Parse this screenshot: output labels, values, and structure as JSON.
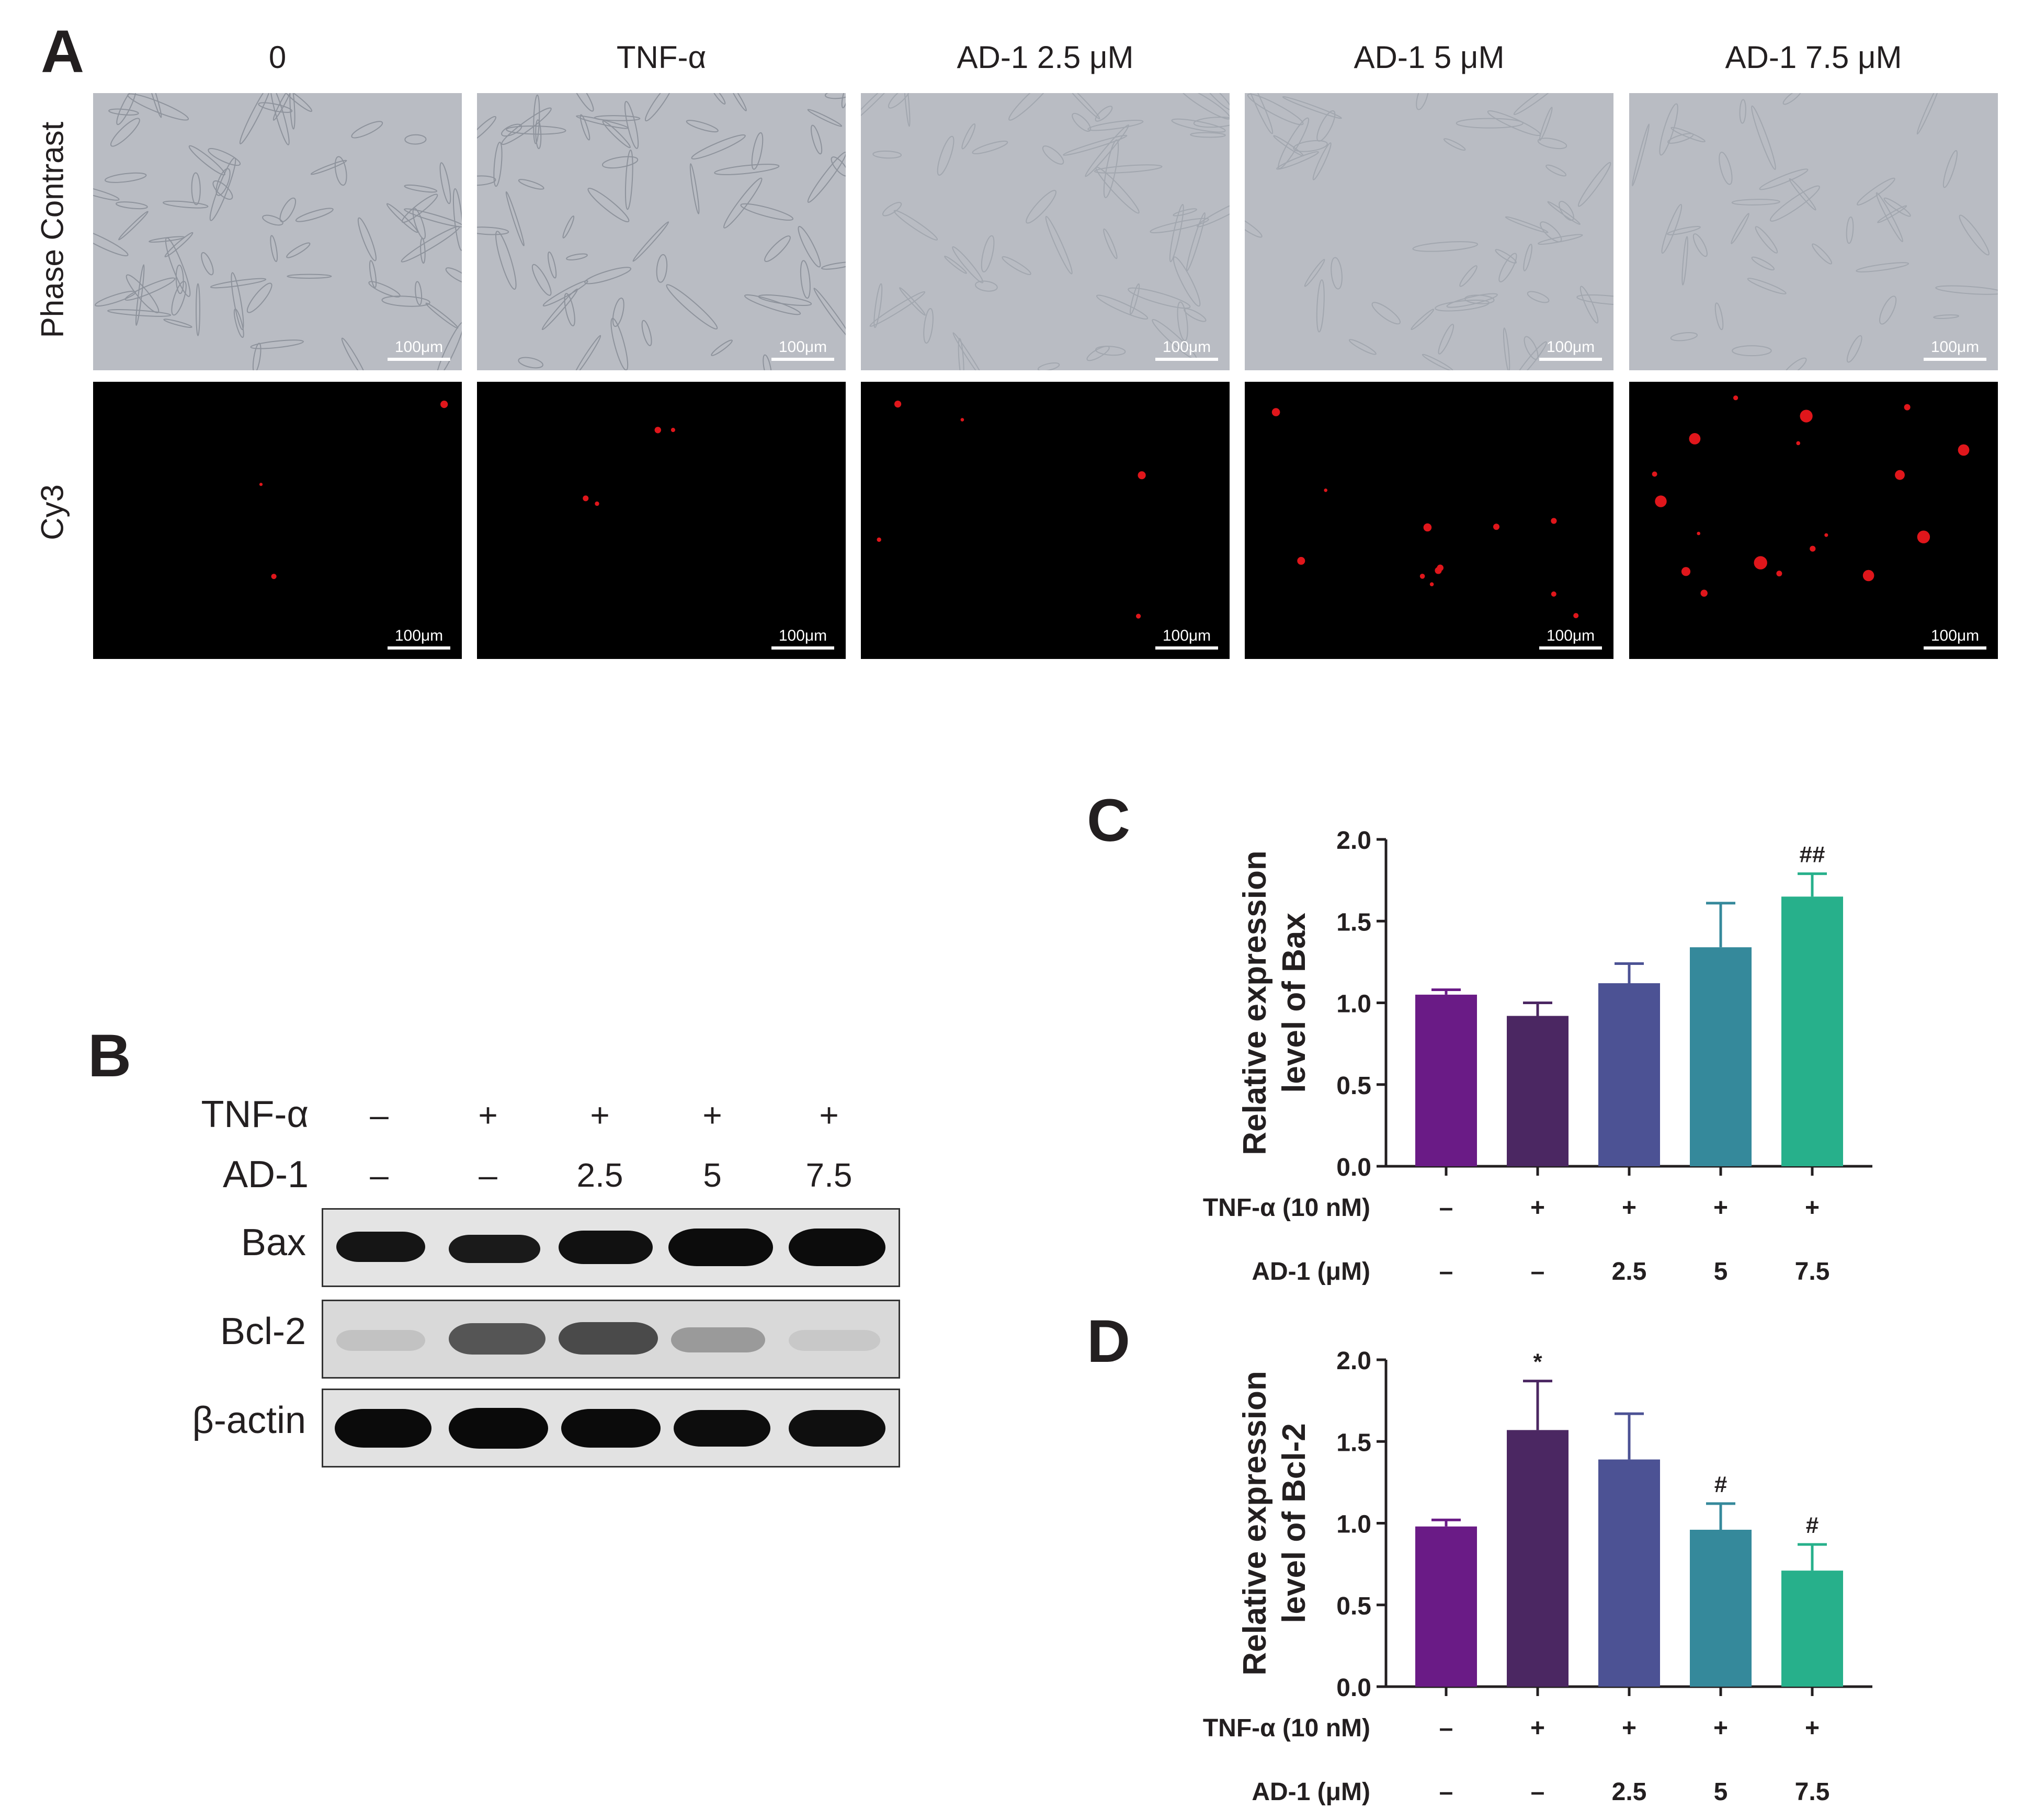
{
  "panels": {
    "a": "A",
    "b": "B",
    "c": "C",
    "d": "D"
  },
  "panel_a": {
    "columns": [
      "0",
      "TNF-α",
      "AD-1 2.5 μM",
      "AD-1 5 μM",
      "AD-1 7.5 μM"
    ],
    "rows": [
      "Phase Contrast",
      "Cy3"
    ],
    "scale_bar": "100μm",
    "colors": {
      "phase": "#b9bcc3",
      "cy3_bg": "#000000",
      "cy3_signal": "#e0161b"
    }
  },
  "panel_b": {
    "row_labels": {
      "tnf": "TNF-α",
      "ad1": "AD-1"
    },
    "tnf": [
      "–",
      "+",
      "+",
      "+",
      "+"
    ],
    "ad1": [
      "–",
      "–",
      "2.5",
      "5",
      "7.5"
    ],
    "blots": [
      "Bax",
      "Bcl-2",
      "β-actin"
    ]
  },
  "chart_data": [
    {
      "type": "bar",
      "panel": "C",
      "ylabel": [
        "Relative expression",
        "level of Bax"
      ],
      "ylim": [
        0,
        2.0
      ],
      "yticks": [
        "0.0",
        "0.5",
        "1.0",
        "1.5",
        "2.0"
      ],
      "values": [
        1.05,
        0.92,
        1.12,
        1.34,
        1.65
      ],
      "errors": [
        0.03,
        0.08,
        0.12,
        0.27,
        0.14
      ],
      "annotations": [
        "",
        "",
        "",
        "",
        "##"
      ],
      "colors": [
        "#6a1b86",
        "#4b2762",
        "#4c5294",
        "#35899b",
        "#27b08b"
      ],
      "xrows": [
        {
          "label": "TNF-α (10 nM)",
          "values": [
            "–",
            "+",
            "+",
            "+",
            "+"
          ]
        },
        {
          "label": "AD-1 (μM)",
          "values": [
            "–",
            "–",
            "2.5",
            "5",
            "7.5"
          ]
        }
      ]
    },
    {
      "type": "bar",
      "panel": "D",
      "ylabel": [
        "Relative expression",
        "level of Bcl-2"
      ],
      "ylim": [
        0,
        2.0
      ],
      "yticks": [
        "0.0",
        "0.5",
        "1.0",
        "1.5",
        "2.0"
      ],
      "values": [
        0.98,
        1.57,
        1.39,
        0.96,
        0.71
      ],
      "errors": [
        0.04,
        0.3,
        0.28,
        0.16,
        0.16
      ],
      "annotations": [
        "",
        "*",
        "",
        "#",
        "#"
      ],
      "colors": [
        "#6a1b86",
        "#4b2762",
        "#4c5294",
        "#35899b",
        "#27b08b"
      ],
      "xrows": [
        {
          "label": "TNF-α (10 nM)",
          "values": [
            "–",
            "+",
            "+",
            "+",
            "+"
          ]
        },
        {
          "label": "AD-1 (μM)",
          "values": [
            "–",
            "–",
            "2.5",
            "5",
            "7.5"
          ]
        }
      ]
    }
  ]
}
